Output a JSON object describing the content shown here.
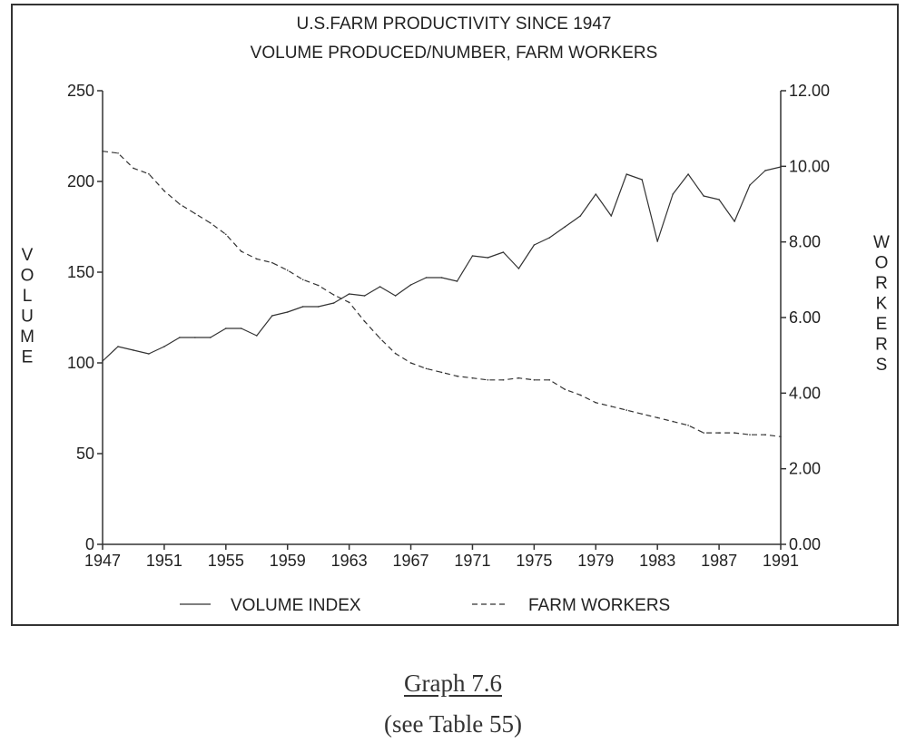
{
  "chart_data": {
    "type": "line",
    "title": "U.S.FARM PRODUCTIVITY SINCE 1947",
    "subtitle": "VOLUME PRODUCED/NUMBER, FARM WORKERS",
    "ylabel_left": "VOLUME",
    "ylabel_right": "WORKERS",
    "x_ticks": [
      "1947",
      "1951",
      "1955",
      "1959",
      "1963",
      "1967",
      "1971",
      "1975",
      "1979",
      "1983",
      "1987",
      "1991"
    ],
    "y_left_ticks": [
      "0",
      "50",
      "100",
      "150",
      "200",
      "250"
    ],
    "y_right_ticks": [
      "0.00",
      "2.00",
      "4.00",
      "6.00",
      "8.00",
      "10.00",
      "12.00"
    ],
    "xlim": [
      1947,
      1991
    ],
    "ylim_left": [
      0,
      250
    ],
    "ylim_right": [
      0,
      12
    ],
    "grid": false,
    "legend_position": "bottom",
    "x": [
      1947,
      1948,
      1949,
      1950,
      1951,
      1952,
      1953,
      1954,
      1955,
      1956,
      1957,
      1958,
      1959,
      1960,
      1961,
      1962,
      1963,
      1964,
      1965,
      1966,
      1967,
      1968,
      1969,
      1970,
      1971,
      1972,
      1973,
      1974,
      1975,
      1976,
      1977,
      1978,
      1979,
      1980,
      1981,
      1982,
      1983,
      1984,
      1985,
      1986,
      1987,
      1988,
      1989,
      1990,
      1991
    ],
    "series": [
      {
        "name": "VOLUME INDEX",
        "axis": "left",
        "style": "solid",
        "values": [
          101,
          109,
          107,
          105,
          109,
          114,
          114,
          114,
          119,
          119,
          115,
          126,
          128,
          131,
          131,
          133,
          138,
          137,
          142,
          137,
          143,
          147,
          147,
          145,
          159,
          158,
          161,
          152,
          165,
          169,
          175,
          181,
          193,
          181,
          204,
          201,
          167,
          193,
          204,
          192,
          190,
          178,
          198,
          206,
          208
        ]
      },
      {
        "name": "FARM WORKERS",
        "axis": "right",
        "style": "dashed",
        "values": [
          10.4,
          10.35,
          9.95,
          9.8,
          9.35,
          9.0,
          8.75,
          8.5,
          8.2,
          7.75,
          7.55,
          7.45,
          7.25,
          7.0,
          6.85,
          6.6,
          6.4,
          5.9,
          5.45,
          5.05,
          4.8,
          4.65,
          4.55,
          4.45,
          4.4,
          4.35,
          4.35,
          4.4,
          4.35,
          4.35,
          4.1,
          3.95,
          3.75,
          3.65,
          3.55,
          3.45,
          3.35,
          3.25,
          3.15,
          2.95,
          2.95,
          2.95,
          2.9,
          2.9,
          2.85
        ]
      }
    ]
  },
  "caption": {
    "title": "Graph 7.6",
    "note": "(see Table 55)"
  }
}
